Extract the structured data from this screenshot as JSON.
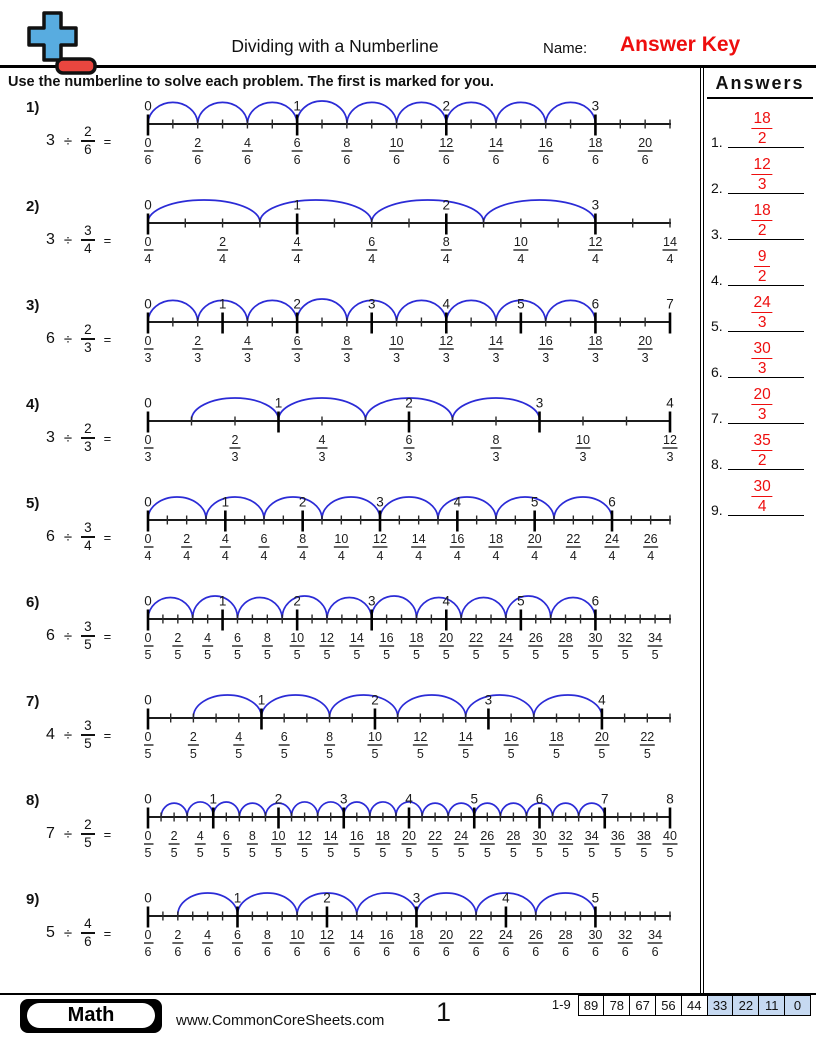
{
  "header": {
    "title": "Dividing with a Numberline",
    "name_label": "Name:",
    "name_value": "Answer Key",
    "logo": "plus-minus-math-logo"
  },
  "instructions": "Use the numberline to solve each problem. The first is marked for you.",
  "problems": [
    {
      "label": "1)",
      "dividend": "3",
      "divide_sign": "÷",
      "divisor_num": "2",
      "divisor_den": "6",
      "equals_sign": "=",
      "numberline": {
        "den": 6,
        "ticks": 21,
        "label_step": 2,
        "label_max": 20,
        "int_max": 3,
        "arc_start": 0,
        "arc_span": 2,
        "arc_count": 9
      }
    },
    {
      "label": "2)",
      "dividend": "3",
      "divide_sign": "÷",
      "divisor_num": "3",
      "divisor_den": "4",
      "equals_sign": "=",
      "numberline": {
        "den": 4,
        "ticks": 14,
        "label_step": 2,
        "label_max": 14,
        "int_max": 3,
        "arc_start": 0,
        "arc_span": 3,
        "arc_count": 4
      }
    },
    {
      "label": "3)",
      "dividend": "6",
      "divide_sign": "÷",
      "divisor_num": "2",
      "divisor_den": "3",
      "equals_sign": "=",
      "numberline": {
        "den": 3,
        "ticks": 21,
        "label_step": 2,
        "label_max": 20,
        "int_max": 7,
        "arc_start": 0,
        "arc_span": 2,
        "arc_count": 9
      }
    },
    {
      "label": "4)",
      "dividend": "3",
      "divide_sign": "÷",
      "divisor_num": "2",
      "divisor_den": "3",
      "equals_sign": "=",
      "numberline": {
        "den": 3,
        "ticks": 12,
        "label_step": 2,
        "label_max": 12,
        "int_max": 4,
        "arc_start": 1,
        "arc_span": 2,
        "arc_count": 4
      }
    },
    {
      "label": "5)",
      "dividend": "6",
      "divide_sign": "÷",
      "divisor_num": "3",
      "divisor_den": "4",
      "equals_sign": "=",
      "numberline": {
        "den": 4,
        "ticks": 27,
        "label_step": 2,
        "label_max": 26,
        "int_max": 6,
        "arc_start": 0,
        "arc_span": 3,
        "arc_count": 8
      }
    },
    {
      "label": "6)",
      "dividend": "6",
      "divide_sign": "÷",
      "divisor_num": "3",
      "divisor_den": "5",
      "equals_sign": "=",
      "numberline": {
        "den": 5,
        "ticks": 35,
        "label_step": 2,
        "label_max": 34,
        "int_max": 6,
        "arc_start": 0,
        "arc_span": 3,
        "arc_count": 10
      }
    },
    {
      "label": "7)",
      "dividend": "4",
      "divide_sign": "÷",
      "divisor_num": "3",
      "divisor_den": "5",
      "equals_sign": "=",
      "numberline": {
        "den": 5,
        "ticks": 23,
        "label_step": 2,
        "label_max": 22,
        "int_max": 4,
        "arc_start": 2,
        "arc_span": 3,
        "arc_count": 6
      }
    },
    {
      "label": "8)",
      "dividend": "7",
      "divide_sign": "÷",
      "divisor_num": "2",
      "divisor_den": "5",
      "equals_sign": "=",
      "numberline": {
        "den": 5,
        "ticks": 40,
        "label_step": 2,
        "label_max": 40,
        "int_max": 8,
        "arc_start": 1,
        "arc_span": 2,
        "arc_count": 17
      }
    },
    {
      "label": "9)",
      "dividend": "5",
      "divide_sign": "÷",
      "divisor_num": "4",
      "divisor_den": "6",
      "equals_sign": "=",
      "numberline": {
        "den": 6,
        "ticks": 35,
        "label_step": 2,
        "label_max": 34,
        "int_max": 5,
        "arc_start": 2,
        "arc_span": 4,
        "arc_count": 7
      }
    }
  ],
  "answers_panel": {
    "title": "Answers",
    "items": [
      {
        "n": "1.",
        "num": "18",
        "den": "2"
      },
      {
        "n": "2.",
        "num": "12",
        "den": "3"
      },
      {
        "n": "3.",
        "num": "18",
        "den": "2"
      },
      {
        "n": "4.",
        "num": "9",
        "den": "2"
      },
      {
        "n": "5.",
        "num": "24",
        "den": "3"
      },
      {
        "n": "6.",
        "num": "30",
        "den": "3"
      },
      {
        "n": "7.",
        "num": "20",
        "den": "3"
      },
      {
        "n": "8.",
        "num": "35",
        "den": "2"
      },
      {
        "n": "9.",
        "num": "30",
        "den": "4"
      }
    ]
  },
  "footer": {
    "badge": "Math",
    "website": "www.CommonCoreSheets.com",
    "page_number": "1",
    "score_range": "1-9",
    "score_boxes": [
      {
        "value": "89",
        "highlight": false
      },
      {
        "value": "78",
        "highlight": false
      },
      {
        "value": "67",
        "highlight": false
      },
      {
        "value": "56",
        "highlight": false
      },
      {
        "value": "44",
        "highlight": false
      },
      {
        "value": "33",
        "highlight": true
      },
      {
        "value": "22",
        "highlight": true
      },
      {
        "value": "11",
        "highlight": true
      },
      {
        "value": "0",
        "highlight": true
      }
    ]
  },
  "colors": {
    "arc_blue": "#2b2bd6",
    "answer_red": "#ee0e0e",
    "score_highlight": "#c6d9f1",
    "line_black": "#1c1c1c",
    "logo_blue": "#58ace0",
    "logo_red": "#e9463f"
  }
}
